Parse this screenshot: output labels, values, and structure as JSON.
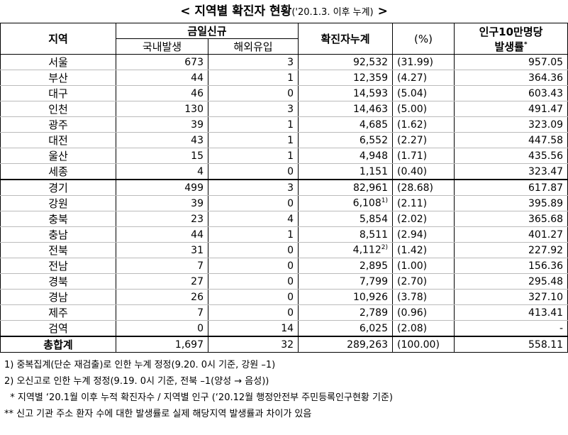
{
  "header": {
    "prefix": "<",
    "title": "지역별 확진자 현황",
    "subtitle": "('20.1.3. 이후 누계)",
    "suffix": ">"
  },
  "table": {
    "columns": {
      "region": "지역",
      "today": "금일신규",
      "domestic": "국내발생",
      "overseas": "해외유입",
      "cumulative": "확진자누계",
      "percent": "(%)",
      "rate_line1": "인구10만명당",
      "rate_line2": "발생률",
      "rate_sup": "*"
    },
    "rows": [
      [
        "서울",
        "673",
        "3",
        "92,532",
        "(31.99)",
        "957.05"
      ],
      [
        "부산",
        "44",
        "1",
        "12,359",
        "(4.27)",
        "364.36"
      ],
      [
        "대구",
        "46",
        "0",
        "14,593",
        "(5.04)",
        "603.43"
      ],
      [
        "인천",
        "130",
        "3",
        "14,463",
        "(5.00)",
        "491.47"
      ],
      [
        "광주",
        "39",
        "1",
        "4,685",
        "(1.62)",
        "323.09"
      ],
      [
        "대전",
        "43",
        "1",
        "6,552",
        "(2.27)",
        "447.58"
      ],
      [
        "울산",
        "15",
        "1",
        "4,948",
        "(1.71)",
        "435.56"
      ],
      [
        "세종",
        "4",
        "0",
        "1,151",
        "(0.40)",
        "323.47"
      ],
      [
        "경기",
        "499",
        "3",
        "82,961",
        "(28.68)",
        "617.87"
      ],
      [
        "강원",
        "39",
        "0",
        {
          "text": "6,108",
          "sup": "1)"
        },
        "(2.11)",
        "395.89"
      ],
      [
        "충북",
        "23",
        "4",
        "5,854",
        "(2.02)",
        "365.68"
      ],
      [
        "충남",
        "44",
        "1",
        "8,511",
        "(2.94)",
        "401.27"
      ],
      [
        "전북",
        "31",
        "0",
        {
          "text": "4,112",
          "sup": "2)"
        },
        "(1.42)",
        "227.92"
      ],
      [
        "전남",
        "7",
        "0",
        "2,895",
        "(1.00)",
        "156.36"
      ],
      [
        "경북",
        "27",
        "0",
        "7,799",
        "(2.70)",
        "295.48"
      ],
      [
        "경남",
        "26",
        "0",
        "10,926",
        "(3.78)",
        "327.10"
      ],
      [
        "제주",
        "7",
        "0",
        "2,789",
        "(0.96)",
        "413.41"
      ],
      [
        "검역",
        "0",
        "14",
        "6,025",
        "(2.08)",
        "-"
      ],
      [
        "총합계",
        "1,697",
        "32",
        "289,263",
        "(100.00)",
        "558.11"
      ]
    ]
  },
  "footnotes": [
    "1) 중복집계(단순 재검출)로 인한 누계 정정(9.20. 0시 기준, 강원 –1)",
    "2) 오신고로 인한 누계 정정(9.19. 0시 기준, 전북 –1(양성 → 음성))",
    "  * 지역별 ‘20.1월 이후 누적 확진자수 / 지역별 인구 (‘20.12월 행정안전부 주민등록인구현황 기준)",
    "** 신고 기관 주소 환자 수에 대한 발생률로 실제 해당지역 발생률과 차이가 있음"
  ]
}
